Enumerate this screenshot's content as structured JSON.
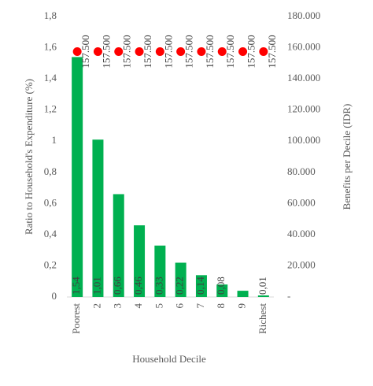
{
  "chart_data": {
    "type": "bar",
    "x_label": "Household Decile",
    "y_label": "Ratio to Household's Expenditure (%)",
    "y2_label": "Benefits per Decile (IDR)",
    "categories": [
      "Poorest",
      "2",
      "3",
      "4",
      "5",
      "6",
      "7",
      "8",
      "9",
      "Richest"
    ],
    "series": [
      {
        "type": "bar",
        "color": "#00b050",
        "values": [
          1.54,
          1.01,
          0.66,
          0.46,
          0.33,
          0.22,
          0.14,
          0.08,
          0.04,
          0.01
        ],
        "value_labels": [
          "1,54",
          "1,01",
          "0,66",
          "0,46",
          "0,33",
          "0,22",
          "0,14",
          "0,08",
          null,
          "0,01"
        ]
      },
      {
        "type": "scatter",
        "color": "#ff0000",
        "axis": "y2",
        "values": [
          157500,
          157500,
          157500,
          157500,
          157500,
          157500,
          157500,
          157500,
          157500,
          157500
        ],
        "value_labels": [
          "157.500",
          "157.500",
          "157.500",
          "157.500",
          "157.500",
          "157.500",
          "157.500",
          "157.500",
          "157.500",
          "157.500"
        ]
      }
    ],
    "ylim": [
      0,
      1.8
    ],
    "yticks": [
      0,
      {
        "value": 0.2,
        "label": "0,2"
      },
      {
        "value": 0.4,
        "label": "0,4"
      },
      {
        "value": 0.6,
        "label": "0,6"
      },
      {
        "value": 0.8,
        "label": "0,8"
      },
      1,
      {
        "value": 1.2,
        "label": "1,2"
      },
      {
        "value": 1.4,
        "label": "1,4"
      },
      {
        "value": 1.6,
        "label": "1,6"
      },
      {
        "value": 1.8,
        "label": "1,8"
      }
    ],
    "y2lim": [
      0,
      180000
    ],
    "y2ticks": [
      {
        "value": 0,
        "label": "-"
      },
      {
        "value": 20000,
        "label": "20.000"
      },
      {
        "value": 40000,
        "label": "40.000"
      },
      {
        "value": 60000,
        "label": "60.000"
      },
      {
        "value": 80000,
        "label": "80.000"
      },
      {
        "value": 100000,
        "label": "100.000"
      },
      {
        "value": 120000,
        "label": "120.000"
      },
      {
        "value": 140000,
        "label": "140.000"
      },
      {
        "value": 160000,
        "label": "160.000"
      },
      {
        "value": 180000,
        "label": "180.000"
      }
    ],
    "grid": false
  }
}
